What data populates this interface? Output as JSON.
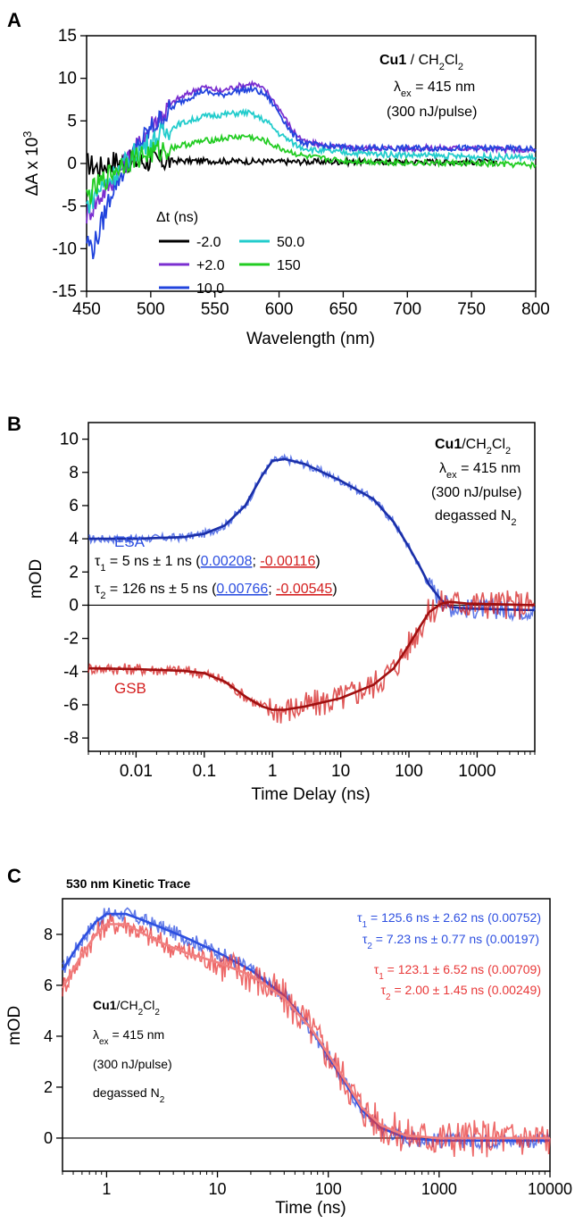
{
  "figure": {
    "panels": [
      "A",
      "B",
      "C"
    ],
    "tex": "ex",
    "t1": "1",
    "t2": "2"
  },
  "chart_data": [
    {
      "id": "A",
      "type": "line",
      "xlabel": "Wavelength (nm)",
      "ylabel": "ΔA x 10",
      "ylabel_sup": "3",
      "xlim": [
        450,
        800
      ],
      "ylim": [
        -15,
        15
      ],
      "xticks": [
        450,
        500,
        550,
        600,
        650,
        700,
        750,
        800
      ],
      "yticks": [
        15,
        10,
        5,
        0,
        -5,
        -10,
        -15
      ],
      "annotation": {
        "sample_bold": "Cu1",
        "solvent": " / CH",
        "sub2": "2",
        "cl": "Cl",
        "lambda": "λ",
        "ex": "ex",
        "wavelength": " = 415 nm",
        "pulse": "(300 nJ/pulse)"
      },
      "legend": {
        "title": "Δt (ns)",
        "items": [
          {
            "label": "-2.0",
            "color": "#000000"
          },
          {
            "label": "+2.0",
            "color": "#7b2fd0"
          },
          {
            "label": "10.0",
            "color": "#2244dd"
          },
          {
            "label": "50.0",
            "color": "#22cccc"
          },
          {
            "label": "150",
            "color": "#22cc22"
          }
        ]
      },
      "series": [
        {
          "name": "-2.0",
          "color": "#000000",
          "x": [
            450,
            460,
            470,
            480,
            500,
            550,
            600,
            650,
            700,
            750,
            770
          ],
          "y": [
            0,
            -0.5,
            0.3,
            0.2,
            0.3,
            0.3,
            0.2,
            0.2,
            0.2,
            0.2,
            0.2
          ]
        },
        {
          "name": "+2.0",
          "color": "#7b2fd0",
          "x": [
            450,
            460,
            470,
            480,
            490,
            500,
            520,
            540,
            555,
            565,
            580,
            590,
            600,
            610,
            620,
            640,
            660,
            700,
            750,
            800
          ],
          "y": [
            -6,
            -4,
            -2,
            0,
            2,
            4.5,
            7.5,
            9,
            8.5,
            9,
            9.4,
            8.5,
            6.5,
            4,
            2.5,
            2,
            1.8,
            1.8,
            1.8,
            1.5
          ]
        },
        {
          "name": "10.0",
          "color": "#2244dd",
          "x": [
            450,
            455,
            460,
            470,
            480,
            490,
            500,
            520,
            540,
            555,
            565,
            580,
            590,
            600,
            610,
            620,
            640,
            660,
            700,
            750,
            800
          ],
          "y": [
            -9,
            -10,
            -8,
            -3,
            -0.5,
            2,
            4,
            7,
            8.5,
            8,
            8.5,
            8.7,
            8,
            6,
            3.5,
            2.3,
            2,
            1.8,
            1.8,
            1.8,
            1.7
          ]
        },
        {
          "name": "50.0",
          "color": "#22cccc",
          "x": [
            450,
            460,
            470,
            480,
            490,
            500,
            520,
            540,
            560,
            575,
            590,
            600,
            615,
            630,
            660,
            700,
            750,
            800
          ],
          "y": [
            -5,
            -3,
            -1.5,
            0,
            1.5,
            2.5,
            4.5,
            5.5,
            5.8,
            6,
            5,
            3.5,
            2,
            1.5,
            1.2,
            1,
            0.8,
            0.7
          ]
        },
        {
          "name": "150",
          "color": "#22cc22",
          "x": [
            450,
            460,
            470,
            480,
            490,
            500,
            520,
            540,
            560,
            575,
            590,
            600,
            620,
            650,
            700,
            750,
            800
          ],
          "y": [
            -4,
            -2.5,
            -1,
            0.2,
            0.8,
            1.2,
            2,
            2.6,
            3,
            3.2,
            2.6,
            1.8,
            0.8,
            0.3,
            0.1,
            0,
            -0.2
          ]
        }
      ]
    },
    {
      "id": "B",
      "type": "line",
      "xscale": "log",
      "xlabel": "Time Delay (ns)",
      "ylabel": "mOD",
      "xlim": [
        0.002,
        7000
      ],
      "ylim": [
        -8.8,
        11
      ],
      "xticks": [
        0.01,
        0.1,
        1,
        10,
        100,
        1000
      ],
      "xticklabels": [
        "0.01",
        "0.1",
        "1",
        "10",
        "100",
        "1000"
      ],
      "yticks": [
        10,
        8,
        6,
        4,
        2,
        0,
        -2,
        -4,
        -6,
        -8
      ],
      "zero_line": true,
      "labels": {
        "esa": "ESA",
        "gsb": "GSB"
      },
      "annotation": {
        "sample_bold": "Cu1",
        "solvent": "/CH",
        "sub2": "2",
        "cl": "Cl",
        "lambda": "λ",
        "ex": "ex",
        "wavelength": " = 415 nm",
        "pulse": "(300 nJ/pulse)",
        "degassed": "degassed N",
        "n2": "2"
      },
      "fits": {
        "tau1_prefix": " = 5 ns ± 1 ns (",
        "tau1_a": "0.00208",
        "sep": "; ",
        "tau1_b": "-0.00116",
        "close": ")",
        "tau2_prefix": " = 126 ns ± 5 ns (",
        "tau2_a": "0.00766",
        "tau2_b": "-0.00545"
      },
      "series": [
        {
          "name": "ESA",
          "color": "#2d4fe0",
          "x": [
            0.002,
            0.01,
            0.05,
            0.1,
            0.2,
            0.4,
            0.7,
            1,
            1.5,
            3,
            10,
            30,
            60,
            100,
            150,
            200,
            300,
            400,
            700,
            7000
          ],
          "y": [
            4,
            4,
            4.1,
            4.3,
            4.8,
            6,
            7.8,
            8.7,
            8.8,
            8.5,
            7.5,
            6.4,
            5,
            3.5,
            2.2,
            1.2,
            0.3,
            -0.1,
            -0.2,
            -0.3
          ]
        },
        {
          "name": "GSB",
          "color": "#d42020",
          "x": [
            0.002,
            0.01,
            0.05,
            0.1,
            0.2,
            0.4,
            0.7,
            1,
            1.5,
            3,
            10,
            30,
            60,
            100,
            150,
            200,
            300,
            400,
            700,
            7000
          ],
          "y": [
            -3.8,
            -3.85,
            -3.95,
            -4.1,
            -4.6,
            -5.5,
            -6.1,
            -6.3,
            -6.3,
            -6.1,
            -5.6,
            -4.8,
            -3.8,
            -2.4,
            -1.2,
            -0.4,
            0.1,
            0.2,
            0.1,
            0
          ]
        }
      ]
    },
    {
      "id": "C",
      "type": "line",
      "xscale": "log",
      "title": "530 nm Kinetic Trace",
      "xlabel": "Time (ns)",
      "ylabel": "mOD",
      "xlim": [
        0.4,
        10000
      ],
      "ylim": [
        -1.3,
        9.4
      ],
      "xticks": [
        1,
        10,
        100,
        1000,
        10000
      ],
      "xticklabels": [
        "1",
        "10",
        "100",
        "1000",
        "10000"
      ],
      "yticks": [
        8,
        6,
        4,
        2,
        0
      ],
      "zero_line": true,
      "annotation": {
        "sample_bold": "Cu1",
        "solvent": "/CH",
        "sub2": "2",
        "cl": "Cl",
        "lambda": "λ",
        "ex": "ex",
        "wavelength": " = 415 nm",
        "pulse": "(300 nJ/pulse)",
        "degassed": "degassed N",
        "n2": "2"
      },
      "fits": {
        "blue_tau1": " = 125.6 ns ± 2.62 ns (0.00752)",
        "blue_tau2": " = 7.23 ns ± 0.77 ns (0.00197)",
        "red_tau1": " = 123.1 ± 6.52 ns (0.00709)",
        "red_tau2": " = 2.00 ± 1.45 ns (0.00249)"
      },
      "series": [
        {
          "name": "blue",
          "color": "#2d4fe0",
          "x": [
            0.4,
            0.6,
            0.8,
            1,
            1.5,
            2,
            3,
            5,
            10,
            20,
            40,
            70,
            100,
            150,
            200,
            300,
            500,
            1000,
            3000,
            10000
          ],
          "y": [
            6.6,
            7.8,
            8.5,
            8.8,
            8.8,
            8.6,
            8.3,
            7.9,
            7.3,
            6.6,
            5.6,
            4.3,
            3.2,
            2,
            1.1,
            0.4,
            0,
            -0.1,
            -0.1,
            -0.1
          ]
        },
        {
          "name": "red",
          "color": "#e83838",
          "x": [
            0.4,
            0.6,
            0.8,
            1,
            1.5,
            2,
            3,
            5,
            10,
            20,
            40,
            70,
            100,
            150,
            200,
            300,
            500,
            1000,
            3000,
            10000
          ],
          "y": [
            5.9,
            7.2,
            8,
            8.4,
            8.4,
            8.1,
            7.7,
            7.3,
            6.9,
            6.4,
            5.5,
            4.3,
            3.3,
            2.1,
            1.2,
            0.5,
            0.1,
            0,
            0,
            0
          ]
        }
      ]
    }
  ]
}
